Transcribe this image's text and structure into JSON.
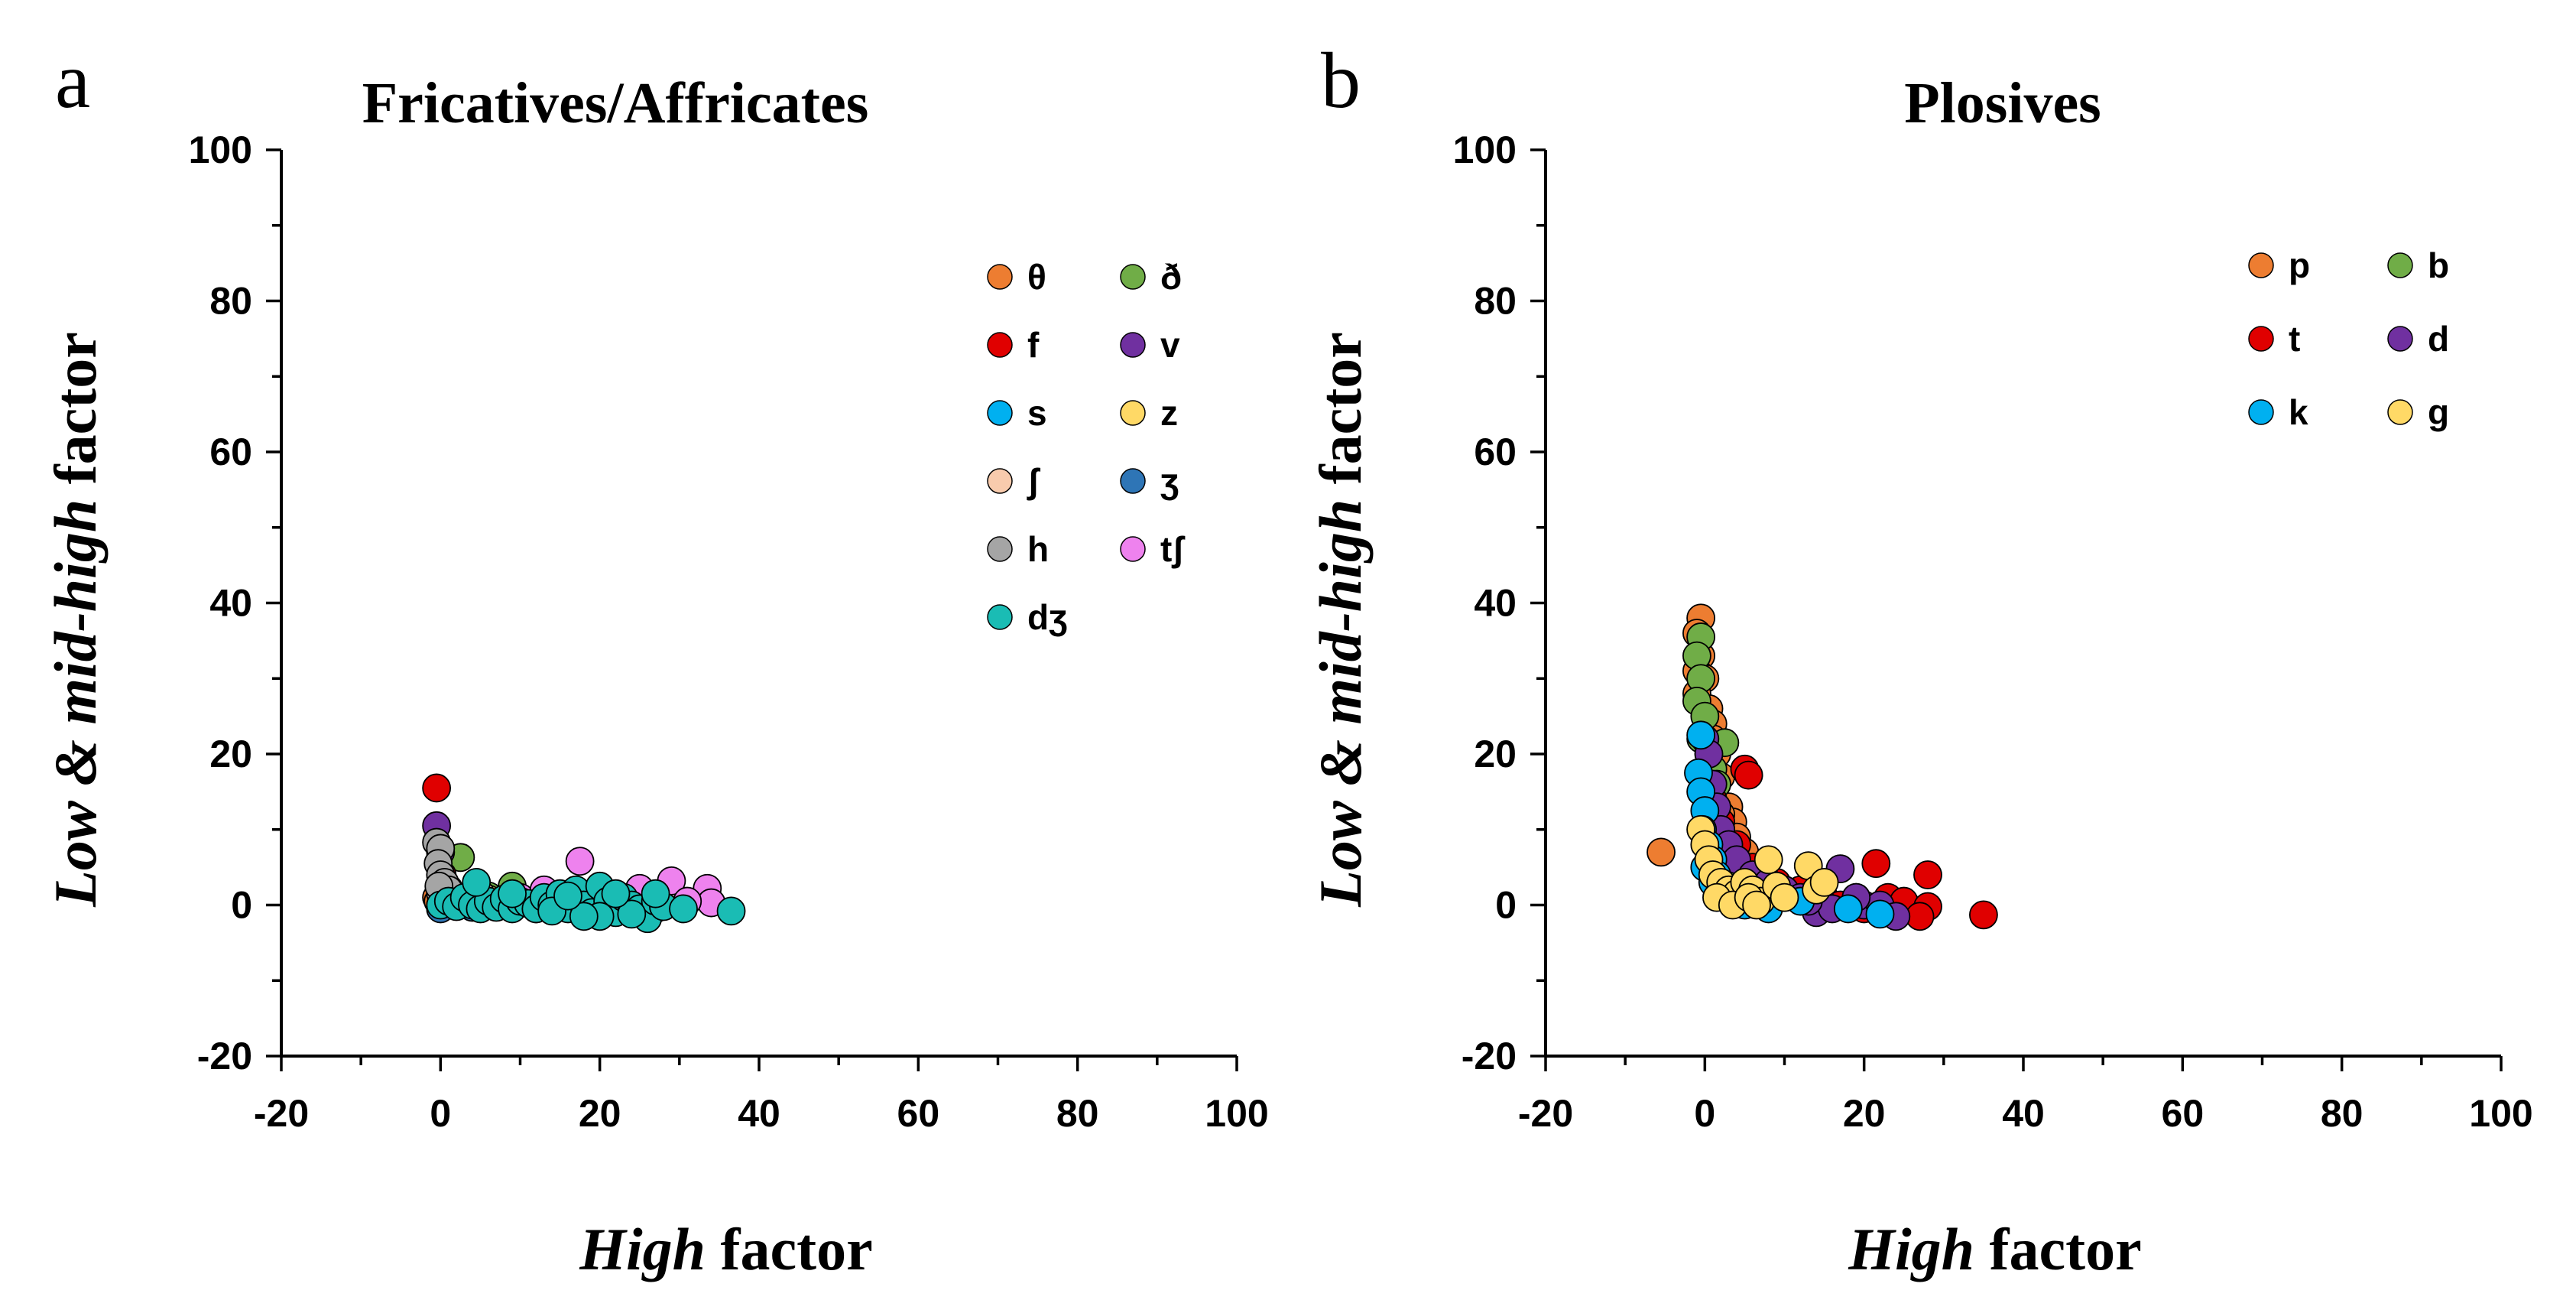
{
  "colors": {
    "theta": "#ED7D31",
    "eth": "#70AD47",
    "f": "#E00000",
    "v": "#7030A0",
    "s": "#00B0F0",
    "z": "#FFD966",
    "esh": "#F8CBAD",
    "ezh": "#2E75B6",
    "h": "#A5A5A5",
    "tesh": "#EE82EE",
    "dezh": "#1ABCB4",
    "p": "#ED7D31",
    "b": "#70AD47",
    "t": "#E00000",
    "d": "#7030A0",
    "k": "#00B0F0",
    "g": "#FFD966"
  },
  "chart_data": [
    {
      "panel_label": "a",
      "type": "scatter",
      "title": "Fricatives/Affricates",
      "xlabel": {
        "italic": "High",
        "rest": " factor"
      },
      "ylabel": {
        "italic1": "Low",
        "mid1": " & ",
        "italic2": "mid-high",
        "rest": " factor"
      },
      "xlim": [
        -20,
        100
      ],
      "ylim": [
        -20,
        100
      ],
      "xticks": [
        "-20",
        "0",
        "20",
        "40",
        "60",
        "80",
        "100"
      ],
      "yticks": [
        "-20",
        "0",
        "20",
        "40",
        "60",
        "80",
        "100"
      ],
      "legend_placement": "top-right",
      "series": [
        {
          "name": "θ",
          "key": "theta",
          "points": [
            [
              -0.5,
              1
            ],
            [
              0,
              2
            ],
            [
              1,
              1.5
            ],
            [
              3,
              0.5
            ],
            [
              5,
              0.3
            ],
            [
              -0.3,
              0.5
            ],
            [
              2,
              0.8
            ]
          ]
        },
        {
          "name": "ð",
          "key": "eth",
          "points": [
            [
              2.5,
              6.3
            ],
            [
              9,
              2.5
            ],
            [
              6,
              1.2
            ],
            [
              0,
              3
            ],
            [
              1,
              2.2
            ],
            [
              4,
              0.8
            ]
          ]
        },
        {
          "name": "f",
          "key": "f",
          "points": [
            [
              -0.5,
              15.5
            ],
            [
              0,
              2
            ],
            [
              1,
              1
            ],
            [
              0.2,
              4
            ],
            [
              2,
              0.5
            ]
          ]
        },
        {
          "name": "v",
          "key": "v",
          "points": [
            [
              -0.5,
              10.5
            ],
            [
              0,
              7
            ],
            [
              0.5,
              3
            ],
            [
              1,
              1
            ],
            [
              3,
              0.5
            ],
            [
              6,
              0.2
            ]
          ]
        },
        {
          "name": "s",
          "key": "s",
          "points": [
            [
              0,
              0
            ],
            [
              3,
              0.3
            ],
            [
              7,
              0
            ],
            [
              12,
              0.2
            ],
            [
              16,
              0
            ],
            [
              20,
              0.5
            ],
            [
              24,
              0.2
            ],
            [
              27,
              -0.5
            ],
            [
              1,
              0.5
            ]
          ]
        },
        {
          "name": "z",
          "key": "z",
          "points": [
            [
              2,
              0.5
            ],
            [
              6,
              0.8
            ],
            [
              10,
              0.3
            ],
            [
              14,
              0.5
            ],
            [
              0.5,
              1
            ]
          ]
        },
        {
          "name": "ʃ",
          "key": "esh",
          "points": [
            [
              1,
              1
            ],
            [
              5,
              1.5
            ],
            [
              9,
              1
            ],
            [
              13,
              0.8
            ],
            [
              17,
              1.2
            ]
          ]
        },
        {
          "name": "ʒ",
          "key": "ezh",
          "points": [
            [
              0,
              -0.5
            ],
            [
              2,
              0
            ],
            [
              4,
              -0.3
            ],
            [
              8,
              0
            ],
            [
              12,
              -0.5
            ],
            [
              0.5,
              0.2
            ]
          ]
        },
        {
          "name": "h",
          "key": "h",
          "points": [
            [
              -0.5,
              8.3
            ],
            [
              0,
              7.5
            ],
            [
              -0.3,
              5.5
            ],
            [
              0,
              4
            ],
            [
              0.5,
              3
            ],
            [
              1,
              2
            ],
            [
              0,
              1.5
            ],
            [
              -0.2,
              2.5
            ]
          ]
        },
        {
          "name": "tʃ",
          "key": "tesh",
          "points": [
            [
              17.5,
              5.8
            ],
            [
              29,
              3.2
            ],
            [
              33.5,
              2.2
            ],
            [
              34,
              0.3
            ],
            [
              25,
              2.2
            ],
            [
              22,
              1
            ],
            [
              15,
              0.5
            ],
            [
              19,
              1.5
            ],
            [
              10,
              1
            ],
            [
              13,
              2
            ],
            [
              27,
              1
            ],
            [
              31,
              0.5
            ]
          ]
        },
        {
          "name": "dʒ",
          "key": "dezh",
          "points": [
            [
              0,
              0
            ],
            [
              1,
              0.5
            ],
            [
              2,
              -0.2
            ],
            [
              3,
              1
            ],
            [
              4,
              0
            ],
            [
              5,
              -0.5
            ],
            [
              6,
              0.5
            ],
            [
              7,
              -0.3
            ],
            [
              8,
              0.8
            ],
            [
              9,
              -0.5
            ],
            [
              10,
              0.5
            ],
            [
              11,
              0.2
            ],
            [
              12,
              -0.5
            ],
            [
              13,
              1
            ],
            [
              14,
              0
            ],
            [
              15,
              1.5
            ],
            [
              16,
              -0.5
            ],
            [
              17,
              2
            ],
            [
              18,
              0
            ],
            [
              19,
              -1
            ],
            [
              20,
              2.5
            ],
            [
              21,
              0.5
            ],
            [
              22,
              -1
            ],
            [
              23,
              1
            ],
            [
              24,
              0
            ],
            [
              25,
              -0.5
            ],
            [
              26,
              -1.8
            ],
            [
              27,
              0.5
            ],
            [
              28,
              -0.2
            ],
            [
              30.5,
              -0.5
            ],
            [
              36.5,
              -0.8
            ],
            [
              4.5,
              3
            ],
            [
              9,
              1.5
            ],
            [
              14,
              -0.8
            ],
            [
              20,
              -1.5
            ],
            [
              24,
              -1.2
            ],
            [
              27,
              1.5
            ],
            [
              22,
              1.5
            ],
            [
              18,
              -1.5
            ],
            [
              16,
              1.2
            ]
          ]
        }
      ]
    },
    {
      "panel_label": "b",
      "type": "scatter",
      "title": "Plosives",
      "xlabel": {
        "italic": "High",
        "rest": " factor"
      },
      "ylabel": {
        "italic1": "Low",
        "mid1": " & ",
        "italic2": "mid-high",
        "rest": " factor"
      },
      "xlim": [
        -20,
        100
      ],
      "ylim": [
        -20,
        100
      ],
      "xticks": [
        "-20",
        "0",
        "20",
        "40",
        "60",
        "80",
        "100"
      ],
      "yticks": [
        "-20",
        "0",
        "20",
        "40",
        "60",
        "80",
        "100"
      ],
      "legend_placement": "top-right",
      "series": [
        {
          "name": "p",
          "key": "p",
          "points": [
            [
              -0.5,
              38
            ],
            [
              -1,
              36
            ],
            [
              -0.5,
              33
            ],
            [
              -1,
              31
            ],
            [
              0,
              30
            ],
            [
              -1,
              28
            ],
            [
              0.5,
              26
            ],
            [
              1,
              24
            ],
            [
              1.5,
              20
            ],
            [
              2,
              17
            ],
            [
              3,
              13
            ],
            [
              3.5,
              11
            ],
            [
              4,
              9
            ],
            [
              5,
              7
            ],
            [
              -5.5,
              7
            ],
            [
              1,
              22
            ],
            [
              2,
              12
            ],
            [
              0.5,
              15
            ]
          ]
        },
        {
          "name": "b",
          "key": "b",
          "points": [
            [
              -0.5,
              35.5
            ],
            [
              -1,
              33
            ],
            [
              -0.5,
              30
            ],
            [
              -1,
              27
            ],
            [
              0,
              25
            ],
            [
              -0.5,
              22
            ],
            [
              0.5,
              20
            ],
            [
              1,
              18
            ],
            [
              1.5,
              16
            ],
            [
              2.5,
              21.5
            ],
            [
              2,
              10
            ],
            [
              3,
              6
            ],
            [
              4,
              4
            ],
            [
              6,
              2
            ],
            [
              8,
              1
            ]
          ]
        },
        {
          "name": "t",
          "key": "t",
          "points": [
            [
              5,
              18
            ],
            [
              5.5,
              17.2
            ],
            [
              1,
              14
            ],
            [
              2,
              11
            ],
            [
              4,
              8
            ],
            [
              6,
              5
            ],
            [
              9,
              3
            ],
            [
              12,
              2
            ],
            [
              15,
              1
            ],
            [
              19,
              1
            ],
            [
              21.5,
              5.5
            ],
            [
              23,
              1
            ],
            [
              25,
              0.5
            ],
            [
              28,
              4
            ],
            [
              28,
              -0.2
            ],
            [
              27,
              -1.5
            ],
            [
              35,
              -1.3
            ],
            [
              20,
              -0.5
            ],
            [
              22,
              -1
            ],
            [
              17,
              0
            ],
            [
              14,
              0.5
            ],
            [
              10,
              1
            ]
          ]
        },
        {
          "name": "d",
          "key": "d",
          "points": [
            [
              0,
              22
            ],
            [
              0.5,
              20
            ],
            [
              1,
              16
            ],
            [
              1.5,
              13
            ],
            [
              2,
              10
            ],
            [
              3,
              8
            ],
            [
              4,
              6
            ],
            [
              6,
              4
            ],
            [
              8,
              3
            ],
            [
              10,
              2
            ],
            [
              12,
              1
            ],
            [
              15,
              0
            ],
            [
              17,
              4.8
            ],
            [
              14,
              -1
            ],
            [
              16,
              -0.5
            ],
            [
              20,
              0
            ],
            [
              22,
              0
            ],
            [
              24,
              -1.5
            ],
            [
              19,
              1
            ],
            [
              13,
              0.5
            ]
          ]
        },
        {
          "name": "k",
          "key": "k",
          "points": [
            [
              -0.5,
              22.5
            ],
            [
              -0.8,
              17.5
            ],
            [
              -0.5,
              15
            ],
            [
              0,
              12.5
            ],
            [
              -0.3,
              10
            ],
            [
              0.5,
              8
            ],
            [
              1,
              6
            ],
            [
              1.5,
              4
            ],
            [
              2,
              2
            ],
            [
              3,
              1
            ],
            [
              5,
              0
            ],
            [
              8,
              -0.5
            ],
            [
              12,
              0.5
            ],
            [
              18,
              -0.5
            ],
            [
              22,
              -1.2
            ],
            [
              0,
              5
            ],
            [
              1,
              3
            ]
          ]
        },
        {
          "name": "g",
          "key": "g",
          "points": [
            [
              -0.5,
              10
            ],
            [
              0,
              8
            ],
            [
              0.5,
              6
            ],
            [
              1,
              4
            ],
            [
              2,
              3
            ],
            [
              3,
              2
            ],
            [
              4,
              1.5
            ],
            [
              5,
              3
            ],
            [
              6,
              2
            ],
            [
              7,
              0.5
            ],
            [
              8,
              6
            ],
            [
              9,
              2.5
            ],
            [
              10,
              1
            ],
            [
              13,
              5.2
            ],
            [
              14,
              2
            ],
            [
              15,
              3
            ],
            [
              1.5,
              1
            ],
            [
              3.5,
              0
            ],
            [
              5.5,
              1
            ],
            [
              6.5,
              0
            ]
          ]
        }
      ]
    }
  ]
}
